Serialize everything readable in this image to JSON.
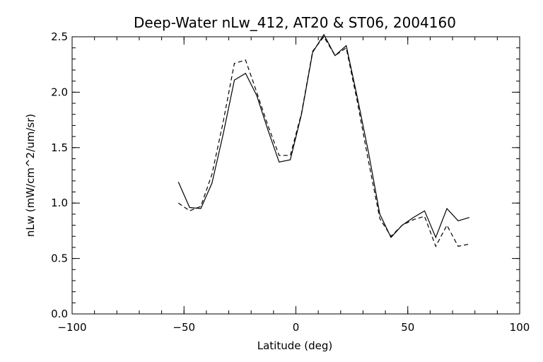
{
  "chart_data": {
    "type": "line",
    "title": "Deep-Water nLw_412, AT20 & ST06, 2004160",
    "xlabel": "Latitude (deg)",
    "ylabel": "nLw (mW/cm^2/um/sr)",
    "xlim": [
      -100,
      100
    ],
    "ylim": [
      0.0,
      2.5
    ],
    "x_ticks": [
      -100,
      -50,
      0,
      50,
      100
    ],
    "x_tick_labels": [
      "−100",
      "−50",
      "0",
      "50",
      "100"
    ],
    "y_ticks": [
      0.0,
      0.5,
      1.0,
      1.5,
      2.0,
      2.5
    ],
    "y_tick_labels": [
      "0.0",
      "0.5",
      "1.0",
      "1.5",
      "2.0",
      "2.5"
    ],
    "x_minor_step": 10,
    "y_minor_step": 0.1,
    "grid": false,
    "legend": "none",
    "series": [
      {
        "style": "solid",
        "color": "#000000",
        "x": [
          -52.5,
          -47.5,
          -42.5,
          -37.5,
          -32.5,
          -27.5,
          -22.5,
          -17.5,
          -12.5,
          -7.5,
          -2.5,
          2.5,
          7.5,
          12.5,
          17.5,
          22.5,
          27.5,
          32.5,
          37.5,
          42.5,
          47.5,
          52.5,
          57.5,
          62.5,
          67.5,
          72.5,
          77.5
        ],
        "y": [
          1.19,
          0.96,
          0.95,
          1.18,
          1.62,
          2.11,
          2.17,
          1.97,
          1.66,
          1.37,
          1.39,
          1.8,
          2.36,
          2.52,
          2.33,
          2.42,
          1.95,
          1.45,
          0.9,
          0.69,
          0.8,
          0.87,
          0.93,
          0.69,
          0.95,
          0.84,
          0.87
        ]
      },
      {
        "style": "dashed",
        "color": "#000000",
        "x": [
          -52.5,
          -47.5,
          -42.5,
          -37.5,
          -32.5,
          -27.5,
          -22.5,
          -17.5,
          -12.5,
          -7.5,
          -2.5,
          2.5,
          7.5,
          12.5,
          17.5,
          22.5,
          27.5,
          32.5,
          37.5,
          42.5,
          47.5,
          52.5,
          57.5,
          62.5,
          67.5,
          72.5,
          77.5
        ],
        "y": [
          1.0,
          0.93,
          0.97,
          1.26,
          1.73,
          2.26,
          2.29,
          2.0,
          1.7,
          1.43,
          1.43,
          1.81,
          2.37,
          2.5,
          2.33,
          2.4,
          1.91,
          1.37,
          0.86,
          0.7,
          0.8,
          0.85,
          0.88,
          0.61,
          0.8,
          0.61,
          0.63
        ]
      }
    ]
  }
}
